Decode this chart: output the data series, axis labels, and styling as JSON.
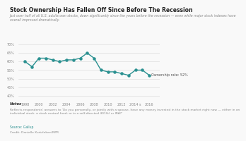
{
  "title": "Stock Ownership Has Fallen Off Since Before The Recession",
  "subtitle": "Just over half of all U.S. adults own stocks, down significantly since the years before the recession — even while major stock indexes have\noverall improved dramatically.",
  "years": [
    1998,
    1999,
    2000,
    2001,
    2002,
    2003,
    2004,
    2005,
    2006,
    2007,
    2008,
    2009,
    2010,
    2011,
    2012,
    2013,
    2014,
    2015,
    2016
  ],
  "values": [
    60,
    57,
    62,
    62,
    61,
    60,
    61,
    61,
    62,
    65,
    62,
    55,
    54,
    54,
    53,
    52,
    55,
    55,
    52
  ],
  "line_color": "#2a9090",
  "annotation": "Ownership rate: 52%",
  "yticks": [
    40,
    45,
    50,
    55,
    60,
    65,
    70
  ],
  "ylim": [
    38,
    72
  ],
  "xlim": [
    1997,
    2017.5
  ],
  "bg_color": "#f9f9f9",
  "grid_color": "#dddddd",
  "note_title": "Notes",
  "note_text": "Reflects respondents' answers to 'Do you personally, or jointly with a spouse, have any money invested in the stock market right now — either in an\nindividual stock, a stock mutual fund, or in a self-directed 401(k) or IRA?'",
  "source_text": "Source: Gallup",
  "credit_text": "Credit: Danielle Kurtzleben/NPR"
}
